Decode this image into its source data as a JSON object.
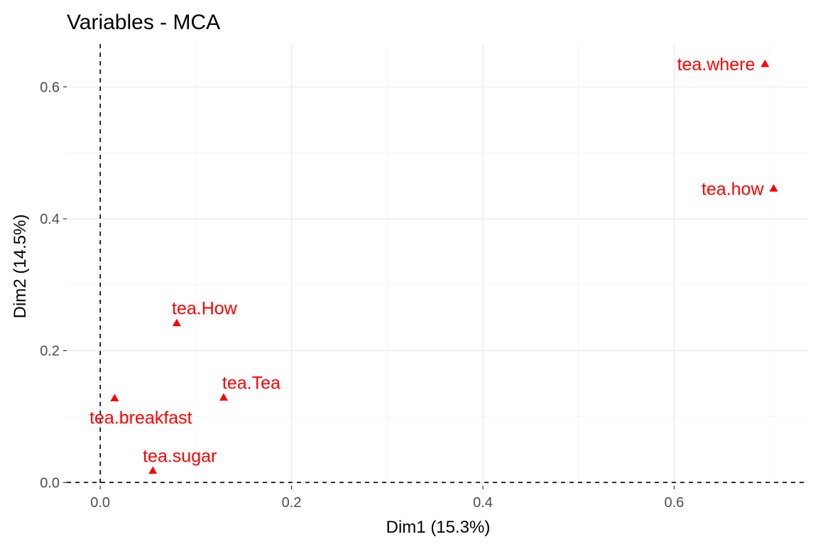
{
  "chart_data": {
    "type": "scatter",
    "title": "Variables - MCA",
    "xlabel": "Dim1 (15.3%)",
    "ylabel": "Dim2 (14.5%)",
    "xlim": [
      -0.035,
      0.74
    ],
    "ylim": [
      -0.005,
      0.665
    ],
    "xticks": [
      0.0,
      0.2,
      0.4,
      0.6
    ],
    "xtick_labels": [
      "0.0",
      "0.2",
      "0.4",
      "0.6"
    ],
    "yticks": [
      0.0,
      0.2,
      0.4,
      0.6
    ],
    "ytick_labels": [
      "0.0",
      "0.2",
      "0.4",
      "0.6"
    ],
    "grid": true,
    "reference_lines": {
      "x": 0,
      "y": 0,
      "style": "dashed"
    },
    "marker": "triangle",
    "color": "#ff0000",
    "points": [
      {
        "label": "tea.where",
        "x": 0.695,
        "y": 0.635,
        "label_pos": "left"
      },
      {
        "label": "tea.how",
        "x": 0.704,
        "y": 0.446,
        "label_pos": "left"
      },
      {
        "label": "tea.How",
        "x": 0.08,
        "y": 0.242,
        "label_pos": "above"
      },
      {
        "label": "tea.Tea",
        "x": 0.129,
        "y": 0.129,
        "label_pos": "above"
      },
      {
        "label": "tea.breakfast",
        "x": 0.015,
        "y": 0.128,
        "label_pos": "below"
      },
      {
        "label": "tea.sugar",
        "x": 0.055,
        "y": 0.018,
        "label_pos": "above"
      }
    ]
  }
}
